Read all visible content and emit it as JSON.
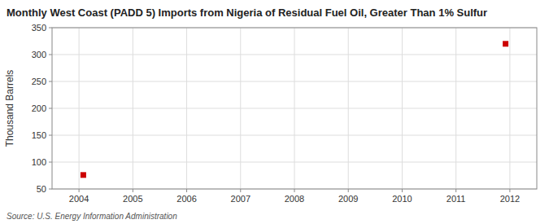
{
  "chart_data": {
    "type": "scatter",
    "title": "Monthly West Coast (PADD 5) Imports from Nigeria of Residual Fuel Oil, Greater Than 1% Sulfur",
    "ylabel": "Thousand Barrels",
    "source": "Source: U.S. Energy Information Administration",
    "x": [
      2004.08,
      2011.92
    ],
    "values": [
      76,
      320
    ],
    "color": "#cc0000",
    "marker": "square",
    "xlim": [
      2003.5,
      2012.5
    ],
    "xticks": [
      2004,
      2005,
      2006,
      2007,
      2008,
      2009,
      2010,
      2011,
      2012
    ],
    "ylim": [
      50,
      350
    ],
    "yticks": [
      50,
      100,
      150,
      200,
      250,
      300,
      350
    ],
    "grid": true
  }
}
